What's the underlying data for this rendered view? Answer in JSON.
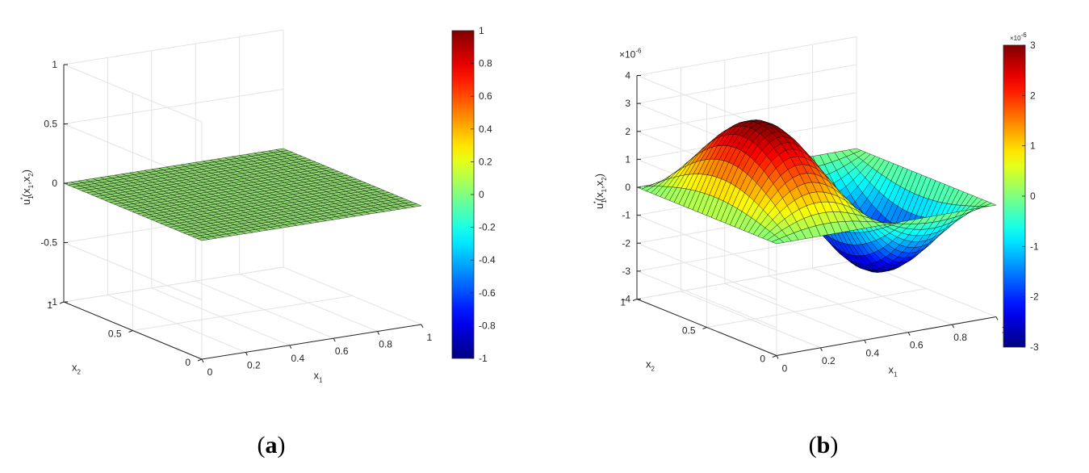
{
  "chart_data": [
    {
      "type": "surface",
      "panel_label": "a",
      "xlabel": "x",
      "xlabel_sub": "1",
      "ylabel": "x",
      "ylabel_sub": "2",
      "zlabel": "u",
      "zlabel_sub": "1",
      "zlabel_args": "(x",
      "zlabel_args_sub1": "1",
      "zlabel_args_mid": ",x",
      "zlabel_args_sub2": "2",
      "zlabel_close": ")",
      "zlabel_sup": "*",
      "xlim": [
        0,
        1
      ],
      "ylim": [
        0,
        1
      ],
      "zlim": [
        -1,
        1
      ],
      "xticks": [
        "0",
        "0.2",
        "0.4",
        "0.6",
        "0.8",
        "1"
      ],
      "yticks": [
        "0",
        "0.5",
        "1"
      ],
      "zticks": [
        "-1",
        "-0.5",
        "0",
        "0.5",
        "1"
      ],
      "grid": true,
      "surface": "u = 0 on [0,1]x[0,1] (flat plane)",
      "amplitude": 0,
      "colorbar": {
        "min": -1,
        "max": 1,
        "ticks": [
          "-1",
          "-0.8",
          "-0.6",
          "-0.4",
          "-0.2",
          "0",
          "0.2",
          "0.4",
          "0.6",
          "0.8",
          "1"
        ],
        "exponent": ""
      },
      "colormap": "jet"
    },
    {
      "type": "surface",
      "panel_label": "b",
      "xlabel": "x",
      "xlabel_sub": "1",
      "ylabel": "x",
      "ylabel_sub": "2",
      "zlabel": "u",
      "zlabel_sub": "1",
      "zlabel_args": "(x",
      "zlabel_args_sub1": "1",
      "zlabel_args_mid": ",x",
      "zlabel_args_sub2": "2",
      "zlabel_close": ")",
      "zlabel_sup": "*",
      "xlim": [
        0,
        1
      ],
      "ylim": [
        0,
        1
      ],
      "zlim": [
        -4,
        4
      ],
      "xticks": [
        "0",
        "0.2",
        "0.4",
        "0.6",
        "0.8",
        "1"
      ],
      "yticks": [
        "0",
        "0.5",
        "1"
      ],
      "zticks": [
        "-4",
        "-3",
        "-2",
        "-1",
        "0",
        "1",
        "2",
        "3",
        "4"
      ],
      "z_exponent": "×10",
      "z_exponent_sup": "-6",
      "grid": true,
      "surface": "u = 3e-6 * sin(2*pi*x1) * sin(pi*x2)",
      "amplitude": 3,
      "colorbar": {
        "min": -3,
        "max": 3,
        "ticks": [
          "-3",
          "-2",
          "-1",
          "0",
          "1",
          "2",
          "3"
        ],
        "exponent": "×10",
        "exponent_sup": "-6"
      },
      "colormap": "jet"
    }
  ],
  "captions": {
    "a": "a",
    "b": "b"
  }
}
